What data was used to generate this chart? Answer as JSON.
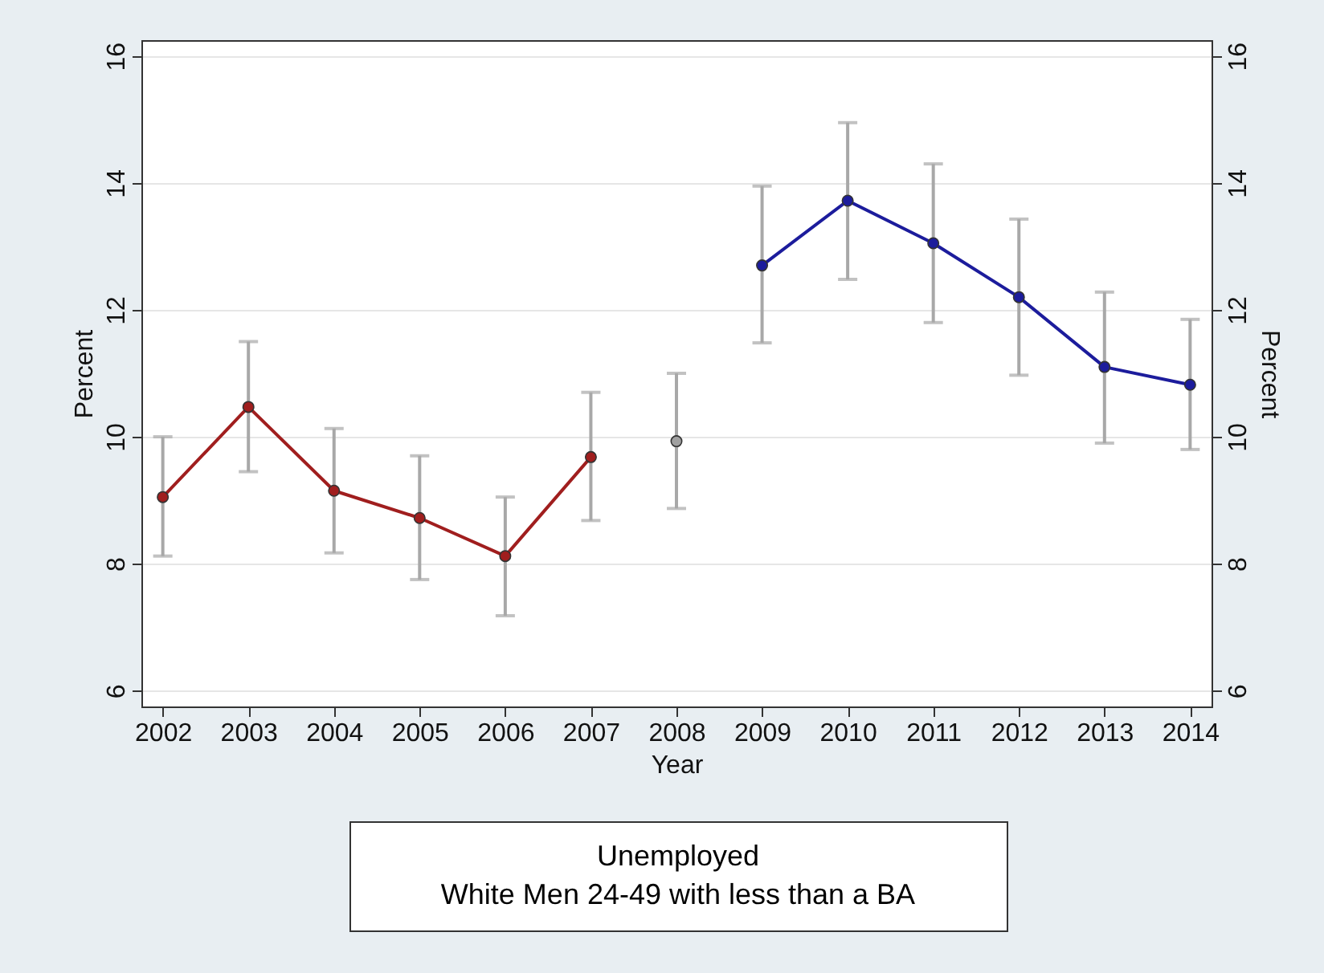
{
  "chart_data": {
    "type": "line",
    "xlabel": "Year",
    "ylabel": "Percent",
    "y2label": "Percent",
    "series": [
      {
        "color": "#a01e1e",
        "x": [
          2002,
          2003,
          2004,
          2005,
          2006,
          2007
        ],
        "values": [
          9.05,
          10.47,
          9.15,
          8.72,
          8.12,
          9.68
        ],
        "errors": [
          [
            8.12,
            10.0
          ],
          [
            9.45,
            11.5
          ],
          [
            8.17,
            10.13
          ],
          [
            7.75,
            9.7
          ],
          [
            7.18,
            9.05
          ],
          [
            8.68,
            10.7
          ]
        ]
      },
      {
        "color": "#a0a0a0",
        "x": [
          2008
        ],
        "values": [
          9.93
        ],
        "errors": [
          [
            8.87,
            11.0
          ]
        ]
      },
      {
        "color": "#1c1c9c",
        "x": [
          2009,
          2010,
          2011,
          2012,
          2013,
          2014
        ],
        "values": [
          12.7,
          13.72,
          13.05,
          12.2,
          11.1,
          10.82
        ],
        "errors": [
          [
            11.48,
            13.95
          ],
          [
            12.48,
            14.95
          ],
          [
            11.8,
            14.3
          ],
          [
            10.97,
            13.43
          ],
          [
            9.9,
            12.28
          ],
          [
            9.8,
            11.85
          ]
        ]
      }
    ],
    "xlim": [
      2001.75,
      2014.25
    ],
    "xticks": [
      2002,
      2003,
      2004,
      2005,
      2006,
      2007,
      2008,
      2009,
      2010,
      2011,
      2012,
      2013,
      2014
    ],
    "ylim": [
      5.75,
      16.25
    ],
    "yticks": [
      6,
      8,
      10,
      12,
      14,
      16
    ],
    "y2lim": [
      5.75,
      16.25
    ],
    "y2ticks": [
      6,
      8,
      10,
      12,
      14,
      16
    ],
    "grid": "y",
    "marker": "circle",
    "line_style": "solid",
    "legend": false,
    "annotations": [
      "Unemployed",
      "White Men 24-49 with less than a BA"
    ]
  }
}
